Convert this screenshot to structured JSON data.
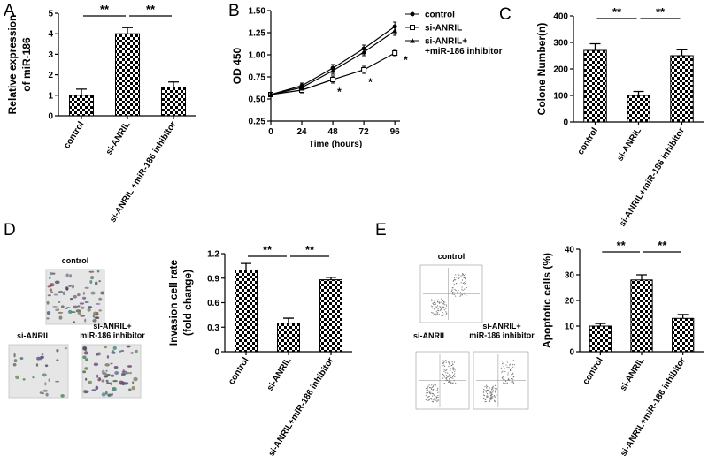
{
  "chart_data": [
    {
      "type": "bar",
      "panel": "A",
      "ylabel": [
        "Relative expression",
        "of miR-186"
      ],
      "categories": [
        "control",
        "si-ANRIL",
        "si-ANRIL +miR-186 inhibitor"
      ],
      "values": [
        1,
        4,
        1.4
      ],
      "errors": [
        0.3,
        0.3,
        0.25
      ],
      "color": "#000000",
      "ylim": [
        0,
        5
      ],
      "yticks": [
        0,
        1,
        2,
        3,
        4,
        5
      ],
      "significance": [
        "**",
        "**"
      ]
    },
    {
      "type": "line",
      "panel": "B",
      "xlabel": "Time (hours)",
      "ylabel": "OD 450",
      "x": [
        0,
        24,
        48,
        72,
        96
      ],
      "xlim": [
        0,
        100
      ],
      "xticks": [
        0,
        24,
        48,
        72,
        96
      ],
      "ylim": [
        0.25,
        1.5
      ],
      "yticks": [
        0.25,
        {
          "value": 0.5,
          "label": "0.50"
        },
        0.75,
        {
          "value": 1,
          "label": "1.00"
        },
        1.25,
        {
          "value": 1.5,
          "label": "1.50"
        }
      ],
      "series": [
        {
          "name": "control",
          "color": "#000000",
          "marker": "circle",
          "values": [
            0.55,
            0.65,
            0.85,
            1.07,
            1.32
          ],
          "errors": [
            0.02,
            0.03,
            0.04,
            0.04,
            0.05
          ]
        },
        {
          "name": "si-ANRIL",
          "color": "#000000",
          "marker": "square",
          "values": [
            0.55,
            0.6,
            0.72,
            0.83,
            1.02
          ],
          "errors": [
            0.02,
            0.03,
            0.04,
            0.04,
            0.03
          ]
        },
        {
          "name": "si-ANRIL+\n+miR-186 inhibitor",
          "color": "#000000",
          "marker": "triangle",
          "values": [
            0.55,
            0.63,
            0.82,
            1.03,
            1.27
          ],
          "errors": [
            0.02,
            0.03,
            0.04,
            0.04,
            0.05
          ]
        }
      ],
      "annotations": [
        "*",
        "*",
        "*"
      ]
    },
    {
      "type": "bar",
      "panel": "C",
      "ylabel": "Colone Number(n)",
      "categories": [
        "control",
        "si-ANRIL",
        "si-ANRIL+miR-186 inhibitor"
      ],
      "values": [
        270,
        100,
        250
      ],
      "errors": [
        25,
        15,
        22
      ],
      "color": "#000000",
      "ylim": [
        0,
        400
      ],
      "yticks": [
        0,
        100,
        200,
        300,
        400
      ],
      "significance": [
        "**",
        "**"
      ]
    },
    {
      "type": "bar",
      "panel": "D",
      "images": [
        "control",
        "si-ANRIL",
        "si-ANRIL+\nmiR-186 inhibitor"
      ],
      "ylabel": [
        "Invasion cell rate",
        "(fold change)"
      ],
      "categories": [
        "control",
        "si-ANRIL",
        "si-ANRIL+miR-186 inhibitor"
      ],
      "values": [
        1,
        0.35,
        0.88
      ],
      "errors": [
        0.08,
        0.06,
        0.03
      ],
      "color": "#000000",
      "ylim": [
        0,
        1.2
      ],
      "yticks": [
        0,
        0.3,
        0.6,
        0.9,
        1.2
      ],
      "significance": [
        "**",
        "**"
      ]
    },
    {
      "type": "bar",
      "panel": "E",
      "images": [
        "control",
        "si-ANRIL",
        "si-ANRIL+\nmiR-186 inhibitor"
      ],
      "ylabel": "Apoptotic cells (%)",
      "categories": [
        "control",
        "si-ANRIL",
        "si-ANRIL+miR-186 inhibitor"
      ],
      "values": [
        10,
        28,
        13
      ],
      "errors": [
        1,
        2,
        1.5
      ],
      "color": "#000000",
      "ylim": [
        0,
        40
      ],
      "yticks": [
        0,
        10,
        20,
        30,
        40
      ],
      "significance": [
        "**",
        "**"
      ]
    }
  ]
}
